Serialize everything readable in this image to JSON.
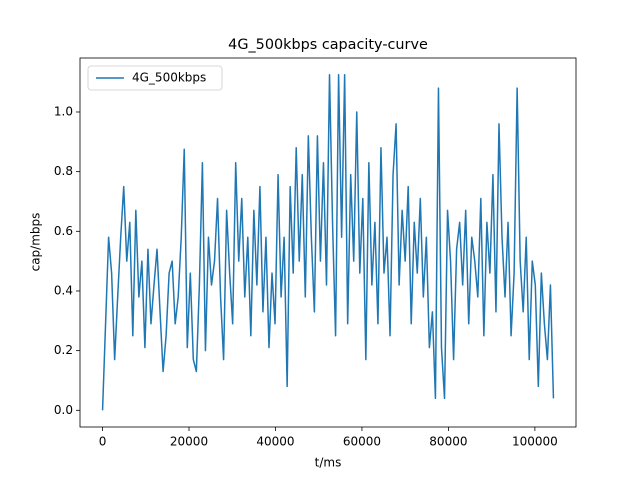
{
  "chart_data": {
    "type": "line",
    "title": "4G_500kbps capacity-curve",
    "x_label": "t/ms",
    "y_label": "cap/mbps",
    "x": [
      0,
      700,
      1400,
      2100,
      2800,
      3500,
      4200,
      4900,
      5600,
      6300,
      7000,
      7700,
      8400,
      9100,
      9800,
      10500,
      11200,
      11900,
      12600,
      13300,
      14000,
      14700,
      15400,
      16100,
      16800,
      17500,
      18200,
      18900,
      19600,
      20300,
      21000,
      21700,
      22400,
      23100,
      23800,
      24500,
      25200,
      25900,
      26600,
      27300,
      28000,
      28700,
      29400,
      30100,
      30800,
      31500,
      32200,
      32900,
      33600,
      34300,
      35000,
      35700,
      36400,
      37100,
      37800,
      38500,
      39200,
      39900,
      40600,
      41300,
      42000,
      42700,
      43400,
      44100,
      44800,
      45500,
      46200,
      46900,
      47600,
      48300,
      49000,
      49700,
      50400,
      51100,
      51800,
      52500,
      53200,
      53900,
      54600,
      55300,
      56000,
      56700,
      57400,
      58100,
      58800,
      59500,
      60200,
      60900,
      61600,
      62300,
      63000,
      63700,
      64400,
      65100,
      65800,
      66500,
      67200,
      67900,
      68600,
      69300,
      70000,
      70700,
      71400,
      72100,
      72800,
      73500,
      74200,
      74900,
      75600,
      76300,
      77000,
      77700,
      78400,
      79100,
      79800,
      80500,
      81200,
      81900,
      82600,
      83300,
      84000,
      84700,
      85400,
      86100,
      86800,
      87500,
      88200,
      88900,
      89600,
      90300,
      91000,
      91700,
      92400,
      93100,
      93800,
      94500,
      95200,
      95900,
      96600,
      97300,
      98000,
      98700,
      99400,
      100100,
      100800,
      101500,
      102200,
      102900,
      103600,
      104300
    ],
    "series": [
      {
        "name": "4G_500kbps",
        "color": "#1f77b4",
        "values": [
          0.0,
          0.29,
          0.58,
          0.46,
          0.17,
          0.38,
          0.58,
          0.75,
          0.5,
          0.63,
          0.25,
          0.67,
          0.38,
          0.5,
          0.21,
          0.54,
          0.29,
          0.42,
          0.54,
          0.33,
          0.13,
          0.25,
          0.46,
          0.5,
          0.29,
          0.38,
          0.58,
          0.875,
          0.21,
          0.46,
          0.17,
          0.13,
          0.42,
          0.83,
          0.2,
          0.58,
          0.42,
          0.5,
          0.71,
          0.38,
          0.17,
          0.67,
          0.46,
          0.29,
          0.83,
          0.5,
          0.71,
          0.38,
          0.58,
          0.25,
          0.67,
          0.42,
          0.75,
          0.33,
          0.58,
          0.21,
          0.46,
          0.29,
          0.79,
          0.38,
          0.58,
          0.08,
          0.75,
          0.46,
          0.88,
          0.5,
          0.79,
          0.38,
          0.92,
          0.58,
          0.33,
          0.92,
          0.5,
          0.83,
          0.42,
          1.125,
          0.63,
          0.25,
          1.125,
          0.58,
          1.125,
          0.29,
          0.79,
          0.5,
          1.0,
          0.46,
          0.71,
          0.17,
          0.83,
          0.42,
          0.63,
          0.29,
          0.88,
          0.46,
          0.58,
          0.25,
          0.79,
          0.96,
          0.42,
          0.67,
          0.5,
          0.75,
          0.29,
          0.63,
          0.46,
          0.71,
          0.38,
          0.58,
          0.21,
          0.33,
          0.04,
          1.08,
          0.21,
          0.04,
          0.67,
          0.5,
          0.17,
          0.54,
          0.63,
          0.42,
          0.67,
          0.29,
          0.58,
          0.5,
          0.38,
          0.71,
          0.25,
          0.63,
          0.46,
          0.79,
          0.33,
          0.96,
          0.58,
          0.38,
          0.63,
          0.25,
          0.46,
          1.08,
          0.5,
          0.33,
          0.58,
          0.17,
          0.5,
          0.42,
          0.08,
          0.46,
          0.29,
          0.17,
          0.42,
          0.04
        ]
      }
    ],
    "xlim": [
      -5215,
      109515
    ],
    "ylim": [
      -0.056,
      1.181
    ],
    "xticks": [
      0,
      20000,
      40000,
      60000,
      80000,
      100000
    ],
    "yticks": [
      {
        "value": 0,
        "label": "0.0"
      },
      0.2,
      0.4,
      0.6,
      0.8,
      {
        "value": 1,
        "label": "1.0"
      }
    ],
    "legend": "upper left"
  }
}
